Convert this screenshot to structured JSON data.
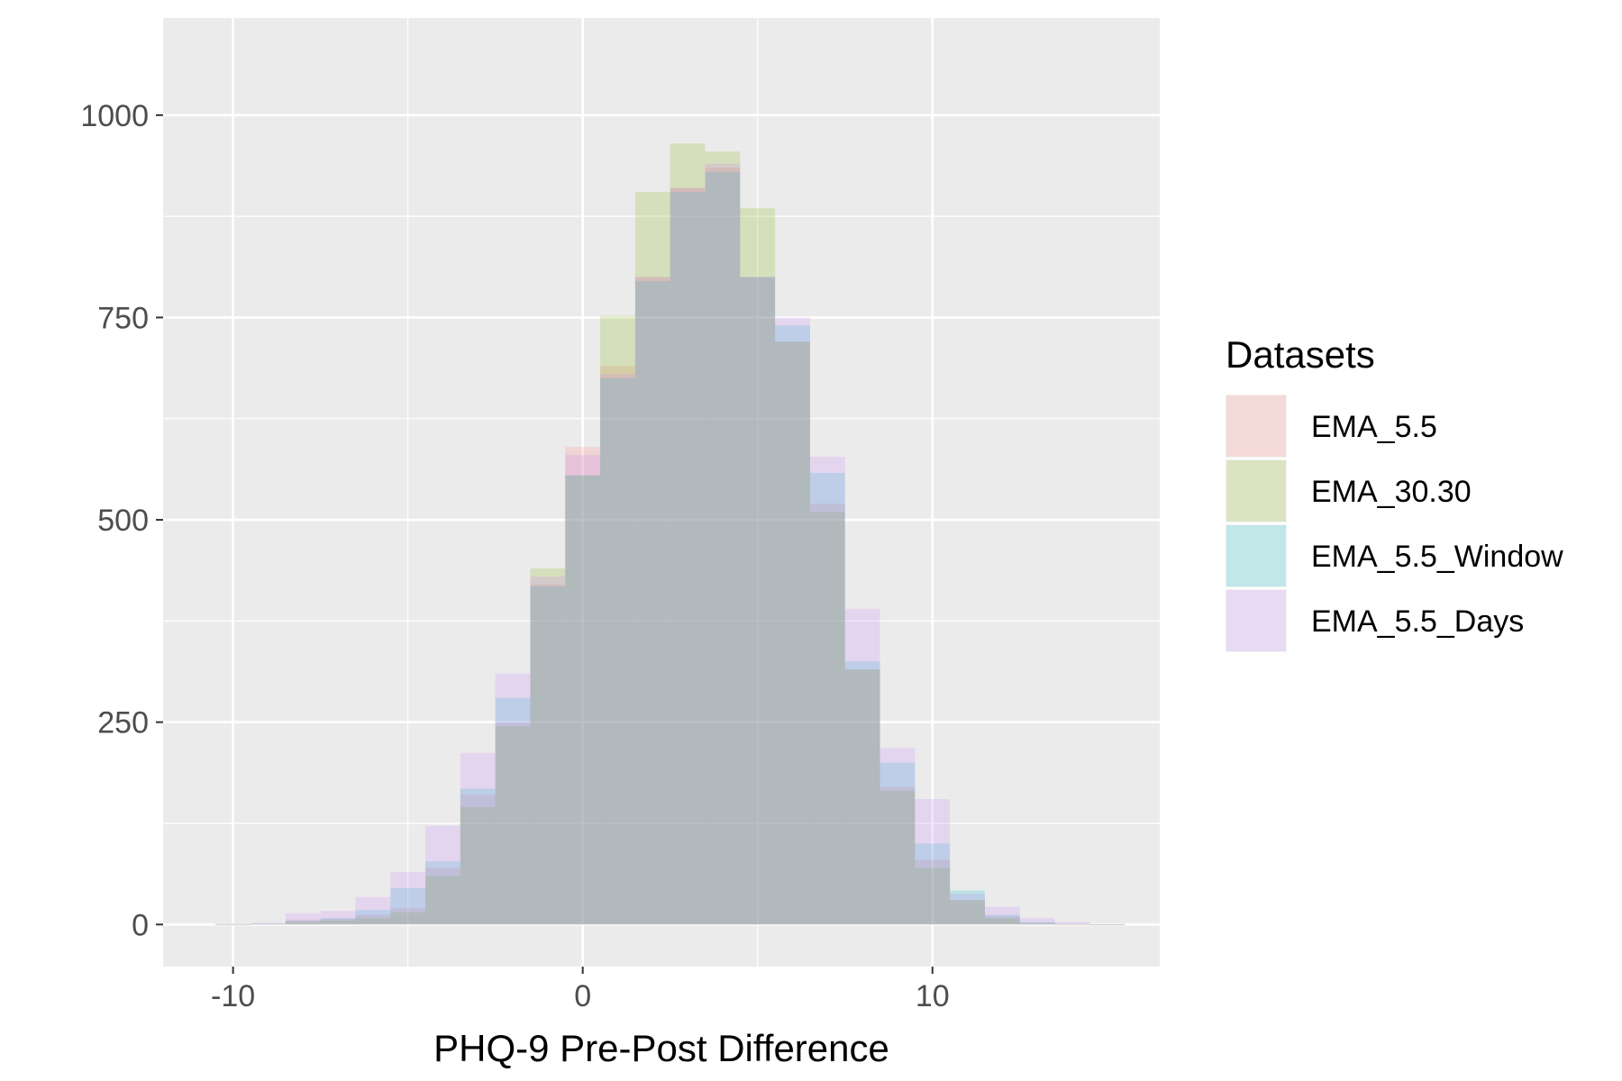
{
  "chart_data": {
    "type": "bar",
    "xlabel": "PHQ-9 Pre-Post Difference",
    "ylabel": "",
    "xlim": [
      -12,
      16.5
    ],
    "ylim": [
      -52,
      1120
    ],
    "xticks": [
      -10,
      0,
      10
    ],
    "xtick_labels": [
      "-10",
      "0",
      "10"
    ],
    "yticks": [
      0,
      250,
      500,
      750,
      1000
    ],
    "ytick_labels": [
      "0",
      "250",
      "500",
      "750",
      "1000"
    ],
    "grid": true,
    "legend": {
      "title": "Datasets",
      "placement": "right"
    },
    "bin_width": 1,
    "bin_centers": [
      -10,
      -9,
      -8,
      -7,
      -6,
      -5,
      -4,
      -3,
      -2,
      -1,
      0,
      1,
      2,
      3,
      4,
      5,
      6,
      7,
      8,
      9,
      10,
      11,
      12,
      13,
      14,
      15
    ],
    "series": [
      {
        "name": "EMA_5.5",
        "color": "#F8766D",
        "values": [
          1,
          1,
          6,
          7,
          12,
          20,
          70,
          160,
          250,
          420,
          590,
          690,
          800,
          910,
          935,
          800,
          720,
          520,
          315,
          170,
          80,
          30,
          10,
          2,
          1,
          0
        ]
      },
      {
        "name": "EMA_30.30",
        "color": "#7CAE00",
        "values": [
          0,
          1,
          3,
          5,
          8,
          15,
          60,
          145,
          245,
          440,
          555,
          752,
          905,
          965,
          955,
          885,
          720,
          510,
          315,
          165,
          70,
          30,
          8,
          2,
          0,
          0
        ]
      },
      {
        "name": "EMA_5.5_Window",
        "color": "#00BFC4",
        "values": [
          0,
          1,
          5,
          8,
          18,
          45,
          78,
          168,
          280,
          418,
          555,
          675,
          795,
          905,
          930,
          800,
          740,
          558,
          325,
          200,
          100,
          42,
          12,
          3,
          1,
          0
        ]
      },
      {
        "name": "EMA_5.5_Days",
        "color": "#C77CFF",
        "values": [
          1,
          2,
          14,
          17,
          34,
          65,
          122,
          212,
          310,
          430,
          580,
          680,
          800,
          910,
          940,
          800,
          750,
          578,
          390,
          218,
          155,
          38,
          22,
          8,
          3,
          1
        ]
      }
    ],
    "overlap_color": "#F8766D"
  }
}
